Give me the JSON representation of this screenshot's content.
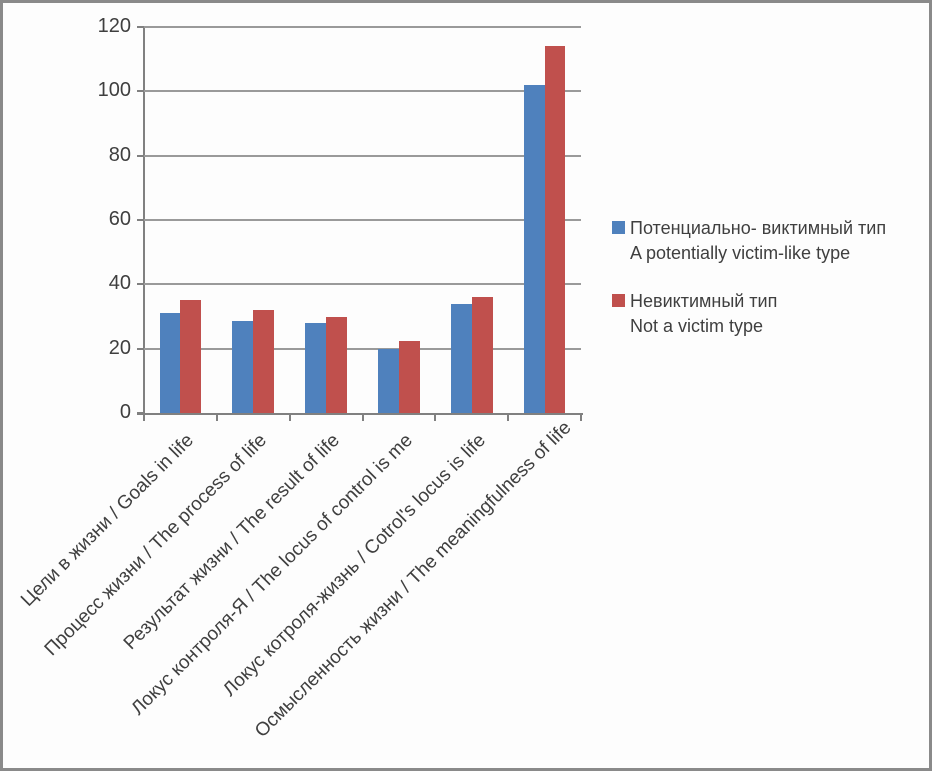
{
  "window": {
    "background_color": "#fdfdfd",
    "border_color": "#8a8a8a"
  },
  "colors": {
    "series1_blue": "#4F81BD",
    "series2_red": "#C0504D",
    "gridline": "#9a9a9a",
    "axis": "#808080",
    "text": "#3f3f3f"
  },
  "chart_data": {
    "type": "bar",
    "categories": [
      "Цели в жизни / Goals in life",
      "Процесс жизни / The process of life",
      "Результат жизни / The result of life",
      "Локус контроля-Я / The locus of control is me",
      "Локус котроля-жизнь / Cotrol's locus is life",
      "Осмысленность жизни / The meaningfulness of life"
    ],
    "series": [
      {
        "name_ru": "Потенциально- виктимный тип",
        "name_en": "A potentially victim-like type",
        "color": "#4F81BD",
        "values": [
          31,
          28.5,
          28,
          20,
          34,
          102
        ]
      },
      {
        "name_ru": "Невиктимный тип",
        "name_en": "Not a victim type",
        "color": "#C0504D",
        "values": [
          35,
          32,
          30,
          22.5,
          36,
          114
        ]
      }
    ],
    "ylim": [
      0,
      120
    ],
    "yticks": [
      0,
      20,
      40,
      60,
      80,
      100,
      120
    ],
    "grid": true,
    "legend_position": "right",
    "bar_gap_ratio": 1.5
  }
}
